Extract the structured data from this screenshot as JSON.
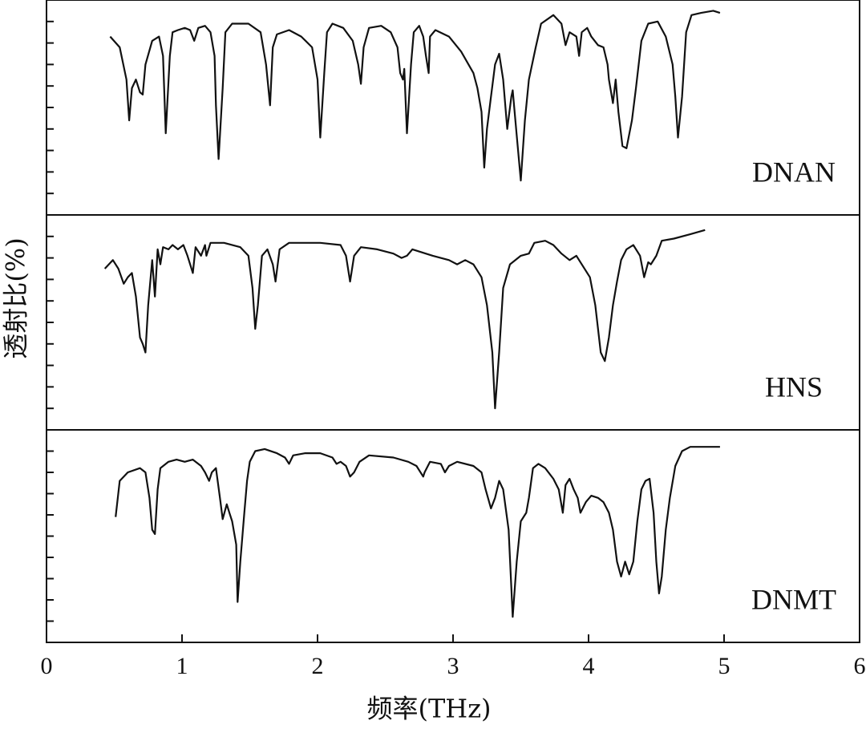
{
  "chart_data": [
    {
      "type": "line",
      "xlim": [
        0,
        6
      ],
      "ylim": [
        0,
        10
      ],
      "yticks": [
        1,
        2,
        3,
        4,
        5,
        6,
        7,
        8,
        9
      ],
      "x": [
        0.47,
        0.54,
        0.59,
        0.61,
        0.63,
        0.66,
        0.69,
        0.71,
        0.73,
        0.78,
        0.83,
        0.86,
        0.88,
        0.91,
        0.93,
        0.97,
        1.02,
        1.06,
        1.09,
        1.12,
        1.17,
        1.21,
        1.24,
        1.25,
        1.27,
        1.3,
        1.32,
        1.37,
        1.49,
        1.58,
        1.62,
        1.65,
        1.67,
        1.7,
        1.79,
        1.88,
        1.96,
        2.0,
        2.02,
        2.05,
        2.07,
        2.11,
        2.19,
        2.26,
        2.3,
        2.32,
        2.34,
        2.38,
        2.47,
        2.54,
        2.59,
        2.61,
        2.63,
        2.64,
        2.66,
        2.69,
        2.71,
        2.75,
        2.78,
        2.8,
        2.82,
        2.83,
        2.87,
        2.97,
        3.06,
        3.15,
        3.18,
        3.21,
        3.23,
        3.25,
        3.28,
        3.31,
        3.34,
        3.37,
        3.4,
        3.43,
        3.44,
        3.47,
        3.5,
        3.53,
        3.56,
        3.61,
        3.65,
        3.74,
        3.8,
        3.83,
        3.86,
        3.91,
        3.93,
        3.95,
        3.99,
        4.02,
        4.07,
        4.11,
        4.14,
        4.15,
        4.18,
        4.2,
        4.22,
        4.25,
        4.28,
        4.32,
        4.35,
        4.39,
        4.44,
        4.51,
        4.57,
        4.62,
        4.64,
        4.66,
        4.69,
        4.72,
        4.76,
        4.83,
        4.92,
        4.97
      ],
      "series": [
        {
          "name": "DNAN",
          "color": "#111111",
          "values": [
            8.3,
            7.8,
            6.3,
            4.4,
            5.9,
            6.3,
            5.7,
            5.6,
            7.0,
            8.1,
            8.3,
            7.4,
            3.8,
            7.4,
            8.5,
            8.6,
            8.7,
            8.6,
            8.1,
            8.7,
            8.8,
            8.5,
            7.4,
            5.1,
            2.6,
            5.9,
            8.5,
            8.9,
            8.9,
            8.5,
            7.0,
            5.1,
            7.8,
            8.4,
            8.6,
            8.3,
            7.8,
            6.3,
            3.6,
            6.6,
            8.5,
            8.9,
            8.7,
            8.1,
            7.0,
            6.1,
            7.8,
            8.7,
            8.8,
            8.5,
            7.8,
            6.6,
            6.3,
            6.8,
            3.8,
            7.0,
            8.5,
            8.8,
            8.3,
            7.4,
            6.6,
            8.3,
            8.6,
            8.3,
            7.6,
            6.6,
            5.9,
            4.8,
            2.2,
            4.0,
            5.5,
            7.0,
            7.5,
            6.3,
            4.0,
            5.5,
            5.8,
            3.7,
            1.6,
            4.4,
            6.3,
            7.8,
            8.9,
            9.3,
            8.9,
            7.9,
            8.5,
            8.3,
            7.4,
            8.5,
            8.7,
            8.3,
            7.9,
            7.8,
            7.0,
            6.3,
            5.2,
            6.3,
            4.8,
            3.2,
            3.1,
            4.4,
            5.9,
            8.1,
            8.9,
            9.0,
            8.3,
            7.0,
            5.5,
            3.6,
            5.5,
            8.5,
            9.3,
            9.4,
            9.5,
            9.4
          ]
        }
      ]
    },
    {
      "type": "line",
      "xlim": [
        0,
        6
      ],
      "ylim": [
        0,
        10
      ],
      "yticks": [
        1,
        2,
        3,
        4,
        5,
        6,
        7,
        8,
        9
      ],
      "ylabel": "透射比(%)",
      "x": [
        0.43,
        0.49,
        0.53,
        0.57,
        0.6,
        0.63,
        0.66,
        0.69,
        0.71,
        0.73,
        0.75,
        0.78,
        0.8,
        0.82,
        0.84,
        0.86,
        0.9,
        0.93,
        0.97,
        1.01,
        1.04,
        1.08,
        1.1,
        1.14,
        1.17,
        1.18,
        1.21,
        1.31,
        1.43,
        1.49,
        1.52,
        1.54,
        1.56,
        1.59,
        1.63,
        1.67,
        1.69,
        1.72,
        1.79,
        2.02,
        2.17,
        2.21,
        2.24,
        2.27,
        2.32,
        2.44,
        2.56,
        2.62,
        2.66,
        2.7,
        2.85,
        2.97,
        3.03,
        3.09,
        3.15,
        3.21,
        3.25,
        3.29,
        3.31,
        3.34,
        3.37,
        3.42,
        3.5,
        3.56,
        3.6,
        3.68,
        3.74,
        3.8,
        3.86,
        3.91,
        3.95,
        4.01,
        4.05,
        4.09,
        4.12,
        4.15,
        4.18,
        4.21,
        4.24,
        4.28,
        4.33,
        4.38,
        4.41,
        4.44,
        4.46,
        4.5,
        4.54,
        4.63,
        4.75,
        4.86
      ],
      "series": [
        {
          "name": "HNS",
          "color": "#111111",
          "values": [
            7.5,
            7.9,
            7.5,
            6.8,
            7.1,
            7.3,
            6.2,
            4.3,
            4.0,
            3.6,
            5.8,
            7.9,
            6.2,
            8.4,
            7.7,
            8.5,
            8.4,
            8.6,
            8.4,
            8.6,
            8.1,
            7.3,
            8.5,
            8.1,
            8.6,
            8.1,
            8.7,
            8.7,
            8.5,
            8.1,
            6.6,
            4.7,
            5.8,
            8.1,
            8.4,
            7.7,
            6.9,
            8.4,
            8.7,
            8.7,
            8.6,
            8.1,
            6.9,
            8.1,
            8.5,
            8.4,
            8.2,
            8.0,
            8.1,
            8.4,
            8.1,
            7.9,
            7.7,
            7.9,
            7.7,
            7.1,
            5.8,
            3.6,
            1.0,
            3.6,
            6.6,
            7.7,
            8.1,
            8.2,
            8.7,
            8.8,
            8.6,
            8.2,
            7.9,
            8.1,
            7.7,
            7.1,
            5.8,
            3.6,
            3.2,
            4.3,
            5.8,
            6.9,
            7.9,
            8.4,
            8.6,
            8.1,
            7.1,
            7.8,
            7.7,
            8.1,
            8.8,
            8.9,
            9.1,
            9.3
          ]
        }
      ]
    },
    {
      "type": "line",
      "xlim": [
        0,
        6
      ],
      "ylim": [
        0,
        10
      ],
      "yticks": [
        1,
        2,
        3,
        4,
        5,
        6,
        7,
        8,
        9
      ],
      "xticks": [
        0,
        1,
        2,
        3,
        4,
        5,
        6
      ],
      "xlabel": "频率(THz)",
      "x": [
        0.51,
        0.54,
        0.6,
        0.69,
        0.73,
        0.76,
        0.78,
        0.8,
        0.82,
        0.84,
        0.9,
        0.96,
        1.02,
        1.08,
        1.14,
        1.17,
        1.2,
        1.22,
        1.25,
        1.28,
        1.3,
        1.33,
        1.35,
        1.37,
        1.4,
        1.41,
        1.43,
        1.46,
        1.48,
        1.5,
        1.54,
        1.61,
        1.7,
        1.76,
        1.79,
        1.82,
        1.91,
        2.02,
        2.11,
        2.14,
        2.17,
        2.21,
        2.24,
        2.27,
        2.31,
        2.38,
        2.56,
        2.67,
        2.73,
        2.78,
        2.79,
        2.83,
        2.91,
        2.94,
        2.97,
        3.03,
        3.15,
        3.21,
        3.24,
        3.28,
        3.31,
        3.34,
        3.37,
        3.41,
        3.44,
        3.47,
        3.5,
        3.54,
        3.56,
        3.59,
        3.63,
        3.68,
        3.74,
        3.78,
        3.81,
        3.83,
        3.86,
        3.89,
        3.92,
        3.94,
        3.98,
        4.02,
        4.07,
        4.11,
        4.15,
        4.18,
        4.21,
        4.24,
        4.27,
        4.3,
        4.33,
        4.36,
        4.39,
        4.42,
        4.45,
        4.48,
        4.5,
        4.52,
        4.54,
        4.57,
        4.6,
        4.64,
        4.69,
        4.75,
        4.86,
        4.97
      ],
      "series": [
        {
          "name": "DNMT",
          "color": "#111111",
          "values": [
            5.9,
            7.6,
            8.0,
            8.2,
            8.0,
            6.8,
            5.3,
            5.1,
            7.2,
            8.2,
            8.5,
            8.6,
            8.5,
            8.6,
            8.3,
            8.0,
            7.6,
            8.0,
            8.2,
            6.8,
            5.8,
            6.5,
            6.1,
            5.7,
            4.6,
            1.9,
            3.8,
            6.1,
            7.6,
            8.5,
            9.0,
            9.1,
            8.9,
            8.7,
            8.4,
            8.8,
            8.9,
            8.9,
            8.7,
            8.4,
            8.5,
            8.3,
            7.8,
            8.0,
            8.5,
            8.8,
            8.7,
            8.5,
            8.3,
            7.8,
            8.0,
            8.5,
            8.4,
            8.0,
            8.3,
            8.5,
            8.3,
            8.0,
            7.2,
            6.3,
            6.8,
            7.6,
            7.2,
            5.3,
            1.2,
            3.8,
            5.7,
            6.1,
            6.8,
            8.2,
            8.4,
            8.2,
            7.7,
            7.2,
            6.1,
            7.4,
            7.7,
            7.2,
            6.8,
            6.1,
            6.6,
            6.9,
            6.8,
            6.6,
            6.1,
            5.3,
            3.8,
            3.1,
            3.8,
            3.2,
            3.8,
            5.7,
            7.2,
            7.6,
            7.7,
            6.1,
            3.8,
            2.3,
            3.1,
            5.3,
            6.8,
            8.3,
            9.0,
            9.2,
            9.2,
            9.2
          ]
        }
      ]
    }
  ]
}
